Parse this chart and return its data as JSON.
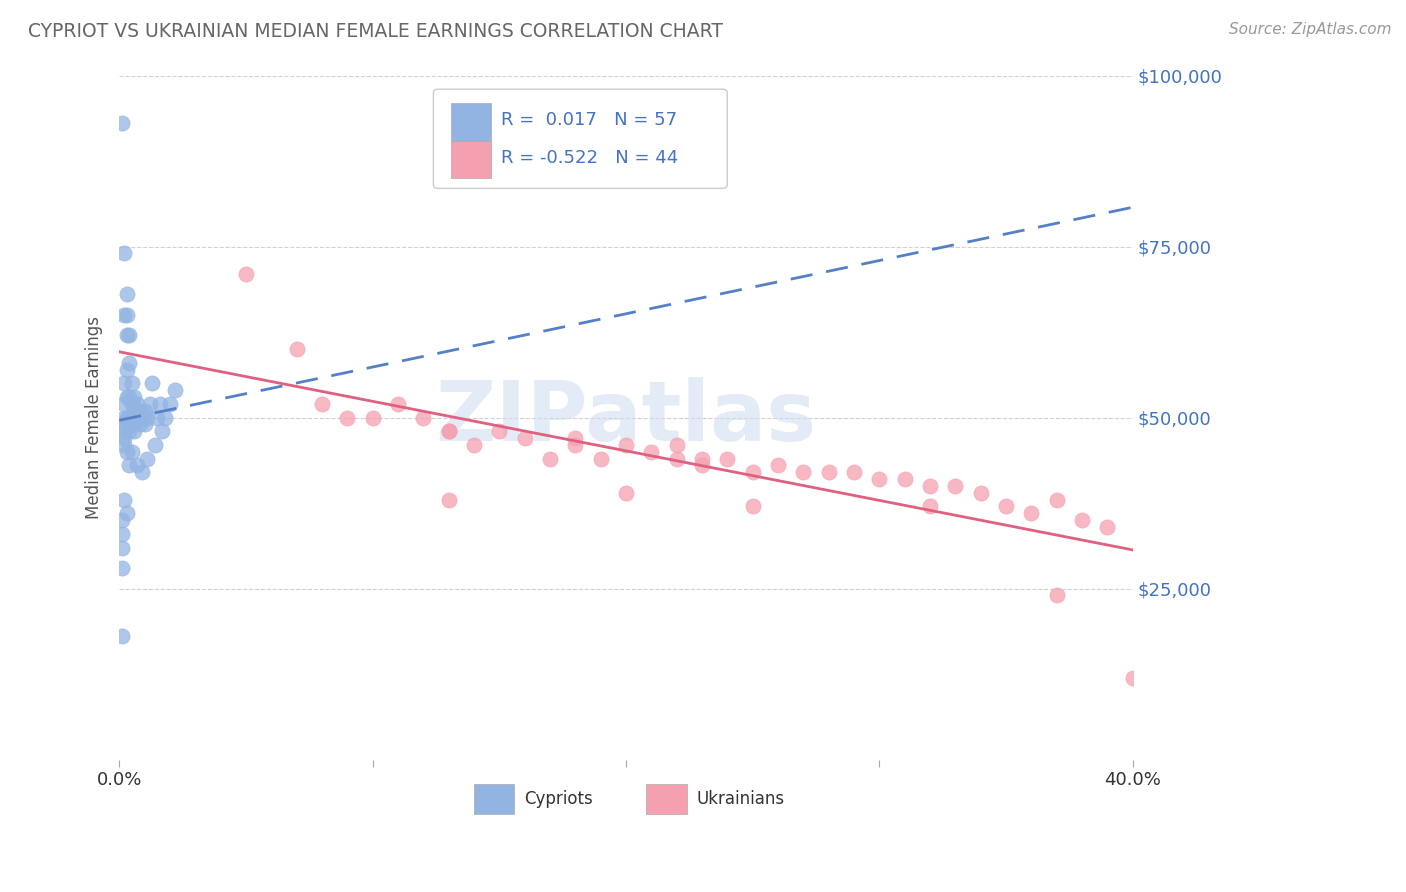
{
  "title": "CYPRIOT VS UKRAINIAN MEDIAN FEMALE EARNINGS CORRELATION CHART",
  "source": "Source: ZipAtlas.com",
  "ylabel": "Median Female Earnings",
  "xlim": [
    0.0,
    0.4
  ],
  "ylim": [
    0,
    100000
  ],
  "yticks": [
    0,
    25000,
    50000,
    75000,
    100000
  ],
  "ytick_labels": [
    "",
    "$25,000",
    "$50,000",
    "$75,000",
    "$100,000"
  ],
  "xticks": [
    0.0,
    0.1,
    0.2,
    0.3,
    0.4
  ],
  "xtick_labels": [
    "0.0%",
    "",
    "",
    "",
    "40.0%"
  ],
  "cypriot_color": "#92B4E3",
  "ukrainian_color": "#F5A0B0",
  "cypriot_line_color": "#5580C8",
  "ukrainian_line_color": "#E06080",
  "cypriot_R": 0.017,
  "cypriot_N": 57,
  "ukrainian_R": -0.522,
  "ukrainian_N": 44,
  "watermark_text": "ZIPatlas",
  "background_color": "#ffffff",
  "grid_color": "#cccccc",
  "title_color": "#666666",
  "label_color": "#4472c4",
  "cypriot_x": [
    0.001,
    0.001,
    0.001,
    0.001,
    0.001,
    0.002,
    0.002,
    0.002,
    0.002,
    0.002,
    0.002,
    0.002,
    0.002,
    0.002,
    0.003,
    0.003,
    0.003,
    0.003,
    0.003,
    0.003,
    0.003,
    0.004,
    0.004,
    0.004,
    0.004,
    0.004,
    0.005,
    0.005,
    0.005,
    0.006,
    0.006,
    0.006,
    0.007,
    0.007,
    0.008,
    0.008,
    0.009,
    0.01,
    0.01,
    0.011,
    0.012,
    0.013,
    0.015,
    0.016,
    0.018,
    0.02,
    0.022,
    0.001,
    0.002,
    0.003,
    0.004,
    0.005,
    0.007,
    0.009,
    0.011,
    0.014,
    0.017
  ],
  "cypriot_y": [
    93000,
    35000,
    33000,
    31000,
    28000,
    74000,
    65000,
    55000,
    52000,
    50000,
    49000,
    48000,
    47000,
    46000,
    68000,
    65000,
    62000,
    57000,
    53000,
    50000,
    45000,
    62000,
    58000,
    53000,
    50000,
    48000,
    55000,
    52000,
    49000,
    53000,
    51000,
    48000,
    52000,
    50000,
    51000,
    49000,
    50000,
    51000,
    49000,
    50000,
    52000,
    55000,
    50000,
    52000,
    50000,
    52000,
    54000,
    18000,
    38000,
    36000,
    43000,
    45000,
    43000,
    42000,
    44000,
    46000,
    48000
  ],
  "ukrainian_x": [
    0.05,
    0.07,
    0.08,
    0.09,
    0.1,
    0.11,
    0.12,
    0.13,
    0.13,
    0.14,
    0.15,
    0.16,
    0.17,
    0.18,
    0.18,
    0.19,
    0.2,
    0.21,
    0.22,
    0.22,
    0.23,
    0.23,
    0.24,
    0.25,
    0.26,
    0.27,
    0.28,
    0.29,
    0.3,
    0.31,
    0.32,
    0.33,
    0.34,
    0.35,
    0.36,
    0.37,
    0.38,
    0.39,
    0.13,
    0.2,
    0.25,
    0.32,
    0.37,
    0.4
  ],
  "ukrainian_y": [
    71000,
    60000,
    52000,
    50000,
    50000,
    52000,
    50000,
    48000,
    48000,
    46000,
    48000,
    47000,
    44000,
    46000,
    47000,
    44000,
    46000,
    45000,
    46000,
    44000,
    43000,
    44000,
    44000,
    42000,
    43000,
    42000,
    42000,
    42000,
    41000,
    41000,
    40000,
    40000,
    39000,
    37000,
    36000,
    38000,
    35000,
    34000,
    38000,
    39000,
    37000,
    37000,
    24000,
    12000
  ]
}
